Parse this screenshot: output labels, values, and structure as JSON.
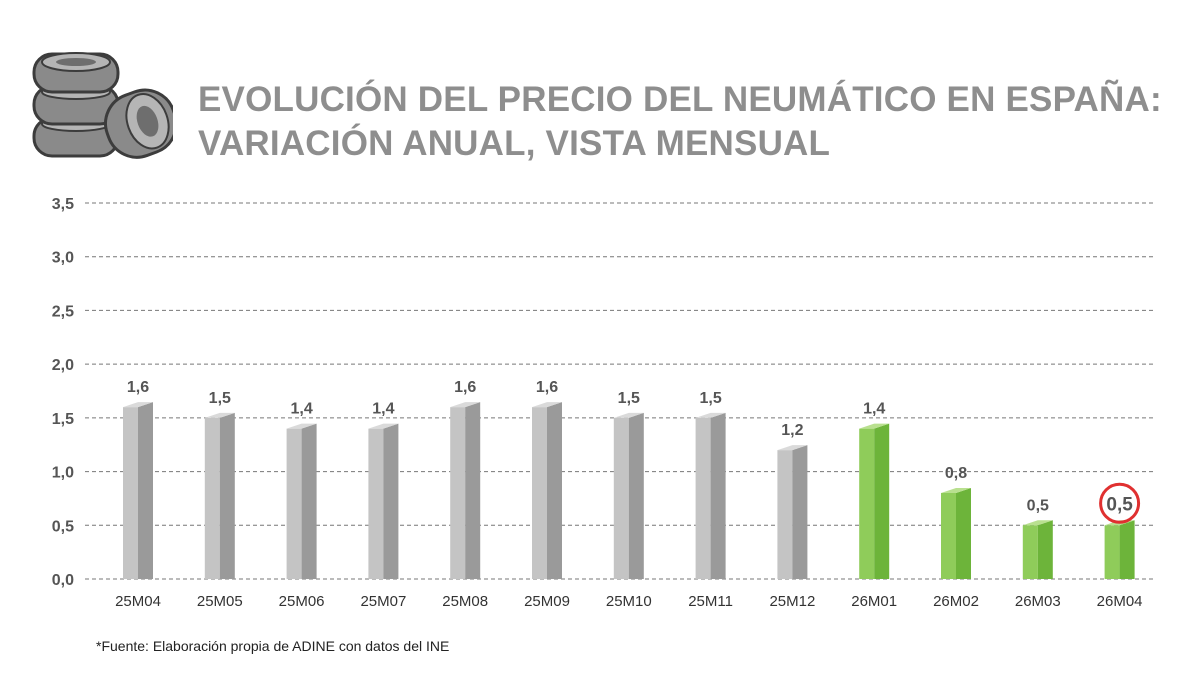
{
  "title": {
    "line1": "EVOLUCIÓN DEL PRECIO DEL NEUMÁTICO EN ESPAÑA:",
    "line2": "VARIACIÓN ANUAL, VISTA MENSUAL"
  },
  "source": "*Fuente: Elaboración propia de ADINE con datos del INE",
  "colors": {
    "gray_front": "#c4c4c4",
    "gray_side": "#9a9a9a",
    "gray_top": "#dadada",
    "green_front": "#8fcc5a",
    "green_side": "#6db43a",
    "green_top": "#b9e08f",
    "highlight_circle": "#e03030",
    "title": "#8e8e8e"
  },
  "chart_data": {
    "type": "bar",
    "categories": [
      "25M04",
      "25M05",
      "25M06",
      "25M07",
      "25M08",
      "25M09",
      "25M10",
      "25M11",
      "25M12",
      "26M01",
      "26M02",
      "26M03",
      "26M04"
    ],
    "values": [
      1.6,
      1.5,
      1.4,
      1.4,
      1.6,
      1.6,
      1.5,
      1.5,
      1.2,
      1.4,
      0.8,
      0.5,
      0.5
    ],
    "value_labels": [
      "1,6",
      "1,5",
      "1,4",
      "1,4",
      "1,6",
      "1,6",
      "1,5",
      "1,5",
      "1,2",
      "1,4",
      "0,8",
      "0,5",
      "0,5"
    ],
    "bar_colors": [
      "gray",
      "gray",
      "gray",
      "gray",
      "gray",
      "gray",
      "gray",
      "gray",
      "gray",
      "green",
      "green",
      "green",
      "green"
    ],
    "highlighted": "26M04",
    "yticks": [
      "0,0",
      "0,5",
      "1,0",
      "1,5",
      "2,0",
      "2,5",
      "3,0",
      "3,5"
    ],
    "ylim": [
      0,
      3.5
    ],
    "grid": "dashed horizontal",
    "title": "EVOLUCIÓN DEL PRECIO DEL NEUMÁTICO EN ESPAÑA: VARIACIÓN ANUAL, VISTA MENSUAL"
  }
}
